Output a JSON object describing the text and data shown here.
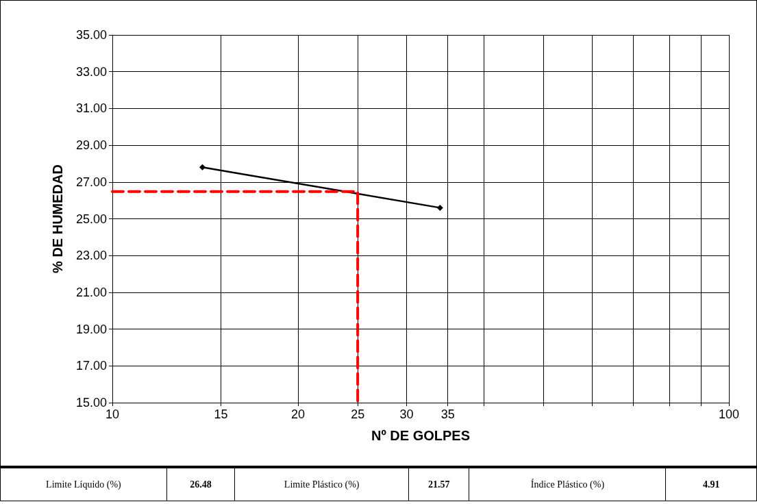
{
  "chart_data": {
    "type": "line",
    "xlabel": "Nº DE GOLPES",
    "ylabel": "% DE HUMEDAD",
    "log": "x",
    "grid": true,
    "xlim": [
      10,
      100
    ],
    "xticks": [
      10,
      15,
      20,
      25,
      30,
      35,
      {
        "value": 40,
        "label": null
      },
      {
        "value": 50,
        "label": null
      },
      {
        "value": 60,
        "label": null
      },
      {
        "value": 70,
        "label": null
      },
      {
        "value": 80,
        "label": null
      },
      {
        "value": 90,
        "label": null
      },
      100
    ],
    "ylim": [
      15,
      35
    ],
    "yticks": [
      {
        "value": 15,
        "label": "15.00"
      },
      {
        "value": 17,
        "label": "17.00"
      },
      {
        "value": 19,
        "label": "19.00"
      },
      {
        "value": 21,
        "label": "21.00"
      },
      {
        "value": 23,
        "label": "23.00"
      },
      {
        "value": 25,
        "label": "25.00"
      },
      {
        "value": 27,
        "label": "27.00"
      },
      {
        "value": 29,
        "label": "29.00"
      },
      {
        "value": 31,
        "label": "31.00"
      },
      {
        "value": 33,
        "label": "33.00"
      },
      {
        "value": 35,
        "label": "35.00"
      }
    ],
    "series": [
      {
        "color": "#000000",
        "x": [
          14,
          34
        ],
        "values": [
          27.8,
          25.6
        ],
        "marker": "diamond",
        "line_style": "solid"
      },
      {
        "color": "#ff0000",
        "x": [
          10,
          25,
          25
        ],
        "values": [
          26.48,
          26.48,
          15
        ],
        "marker": "none",
        "line_style": "dashed"
      }
    ],
    "annotations": [
      "Limite Líquido (%)",
      "26.48",
      "Limite Plástico (%)",
      "21.57",
      "Índice Plástico  (%)",
      "4.91"
    ]
  }
}
